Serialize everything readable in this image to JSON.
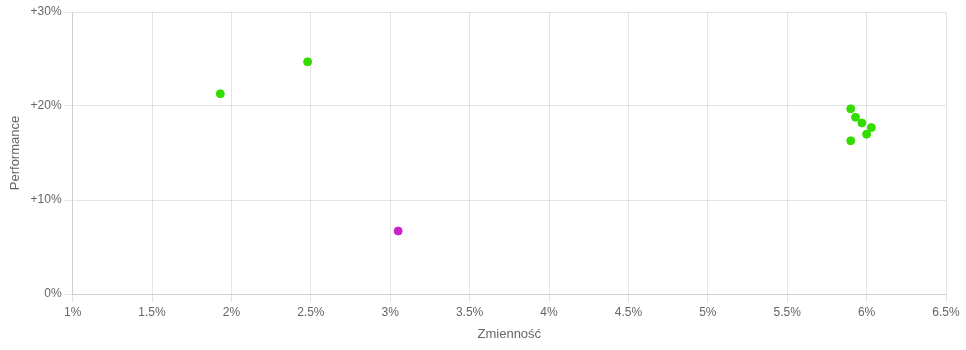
{
  "chart_data": {
    "type": "scatter",
    "xlabel": "Zmienność",
    "ylabel": "Performance",
    "xlim": [
      0.01,
      0.065
    ],
    "ylim": [
      0.0,
      0.3
    ],
    "xticks": [
      {
        "value": 0.01,
        "label": "1%"
      },
      {
        "value": 0.015,
        "label": "1.5%"
      },
      {
        "value": 0.02,
        "label": "2%"
      },
      {
        "value": 0.025,
        "label": "2.5%"
      },
      {
        "value": 0.03,
        "label": "3%"
      },
      {
        "value": 0.035,
        "label": "3.5%"
      },
      {
        "value": 0.04,
        "label": "4%"
      },
      {
        "value": 0.045,
        "label": "4.5%"
      },
      {
        "value": 0.05,
        "label": "5%"
      },
      {
        "value": 0.055,
        "label": "5.5%"
      },
      {
        "value": 0.06,
        "label": "6%"
      },
      {
        "value": 0.065,
        "label": "6.5%"
      }
    ],
    "yticks": [
      {
        "value": 0.0,
        "label": "0%"
      },
      {
        "value": 0.1,
        "label": "+10%"
      },
      {
        "value": 0.2,
        "label": "+20%"
      },
      {
        "value": 0.3,
        "label": "+30%"
      }
    ],
    "grid": true,
    "series": [
      {
        "color": "#33dd00",
        "x": [
          0.0193,
          0.0248,
          0.059,
          0.0593,
          0.0597,
          0.0603,
          0.06,
          0.059
        ],
        "values": [
          0.213,
          0.247,
          0.197,
          0.188,
          0.182,
          0.177,
          0.17,
          0.163
        ]
      },
      {
        "color": "#cc22cc",
        "x": [
          0.0305
        ],
        "values": [
          0.067
        ]
      }
    ]
  }
}
